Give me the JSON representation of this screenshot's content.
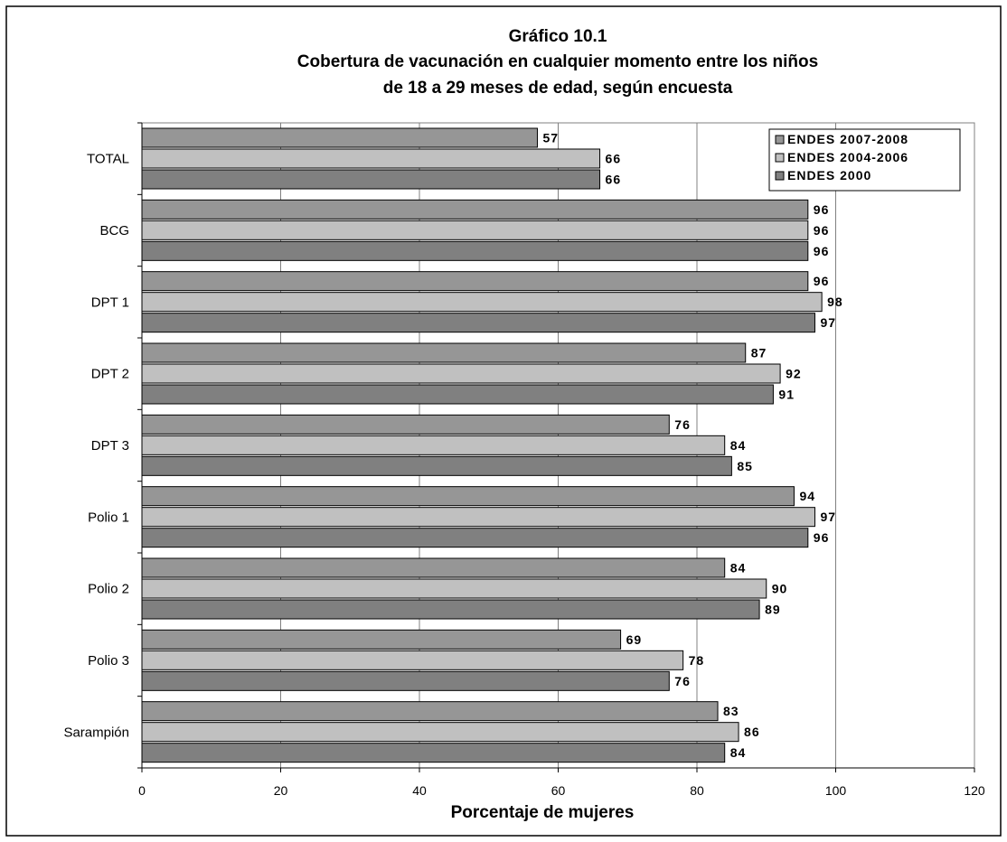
{
  "chart_data": {
    "type": "bar",
    "orientation": "horizontal",
    "title": [
      "Gráfico 10.1",
      "Cobertura de vacunación en cualquier momento entre los niños",
      "de 18 a 29 meses de edad, según encuesta"
    ],
    "xlabel": "Porcentaje de mujeres",
    "ylabel": "",
    "xlim": [
      0,
      120
    ],
    "xticks": [
      "0",
      "20",
      "40",
      "60",
      "80",
      "100",
      "120"
    ],
    "grid": true,
    "legend_position": "top-right",
    "categories": [
      "TOTAL",
      "BCG",
      "DPT 1",
      "DPT 2",
      "DPT 3",
      "Polio 1",
      "Polio 2",
      "Polio 3",
      "Sarampión"
    ],
    "series": [
      {
        "name": "ENDES 2007-2008",
        "color": "#969696",
        "values": [
          57,
          96,
          96,
          87,
          76,
          94,
          84,
          69,
          83
        ],
        "labels": [
          "57",
          "96",
          "96",
          "87",
          "76",
          "94",
          "84",
          "69",
          "83"
        ]
      },
      {
        "name": "ENDES 2004-2006",
        "color": "#c0c0c0",
        "values": [
          66,
          96,
          98,
          92,
          84,
          97,
          90,
          78,
          86
        ],
        "labels": [
          "66",
          "96",
          "98",
          "92",
          "84",
          "97",
          "90",
          "78",
          "86"
        ]
      },
      {
        "name": "ENDES 2000",
        "color": "#808080",
        "values": [
          66,
          96,
          97,
          91,
          85,
          96,
          89,
          76,
          84
        ],
        "labels": [
          "66",
          "96",
          "97",
          "91",
          "85",
          "96",
          "89",
          "76",
          "84"
        ]
      }
    ]
  }
}
